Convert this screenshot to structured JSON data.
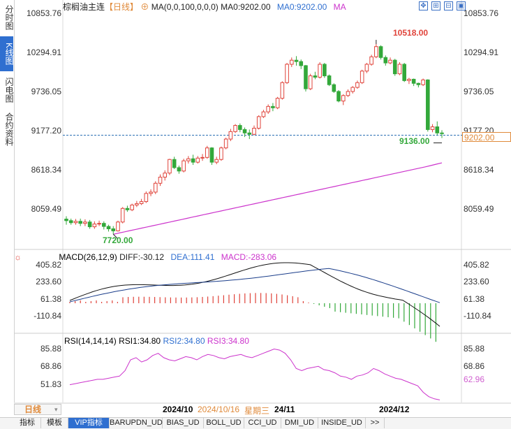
{
  "sidebar": {
    "tabs": [
      {
        "label": "分时图",
        "active": false
      },
      {
        "label": "K线图",
        "active": true
      },
      {
        "label": "闪电图",
        "active": false
      },
      {
        "label": "合约资料",
        "active": false
      }
    ]
  },
  "header": {
    "symbol": "棕榈油主连",
    "period": "【日线】",
    "ma_label": "MA(0,0,100,0,0,0)",
    "ma0_a": "MA0:9202.00",
    "ma0_b": "MA0:9202.00",
    "ma_tail": "MA",
    "toolbar_icons": [
      "crosshair-icon",
      "zoom-in-icon",
      "zoom-out-icon",
      "fullscreen-icon"
    ]
  },
  "main_axis": {
    "left_labels": [
      "10853.76",
      "10294.91",
      "9736.05",
      "9177.20",
      "8618.34",
      "8059.49"
    ],
    "right_labels": [
      "10853.76",
      "10294.91",
      "9736.05",
      "9177.20",
      "8618.34",
      "8059.49"
    ],
    "high_label": "10518.00",
    "low_label": "7720.00",
    "recent_low_label": "9136.00",
    "current_price": "9202.00"
  },
  "macd": {
    "title": "MACD(26,12,9)",
    "diff": "DIFF:-30.12",
    "dea": "DEA:111.41",
    "macd": "MACD:-283.06",
    "labels": [
      "405.82",
      "233.60",
      "61.38",
      "-110.84"
    ]
  },
  "rsi": {
    "title": "RSI(14,14,14)",
    "rsi1": "RSI1:34.80",
    "rsi2": "RSI2:34.80",
    "rsi3": "RSI3:34.80",
    "labels": [
      "85.88",
      "68.86",
      "51.83"
    ],
    "current": "62.96"
  },
  "date_bar": {
    "period_button": "日线",
    "date1": "2024/10",
    "cursor_date": "2024/10/16",
    "weekday": "星期三",
    "date2": "24/11",
    "date3": "2024/12"
  },
  "bottom_tabs": [
    "指标",
    "模板",
    "VIP指标",
    "BARUPDN_UD",
    "BIAS_UD",
    "BOLL_UD",
    "CCI_UD",
    "DMI_UD",
    "INSIDE_UD",
    ">>"
  ],
  "colors": {
    "up": "#e0433a",
    "down": "#33a83a",
    "ma": "#cc33cc",
    "accent": "#2f6fd0",
    "price_line": "#2a6fb3",
    "price_box": "#e08a3a"
  },
  "chart_data": {
    "type": "candlestick",
    "ylim": [
      7620,
      10960
    ],
    "candles": [
      [
        7943,
        7920,
        7985,
        7860
      ],
      [
        7920,
        7890,
        7950,
        7860
      ],
      [
        7890,
        7910,
        7945,
        7860
      ],
      [
        7910,
        7880,
        7950,
        7840
      ],
      [
        7880,
        7900,
        7940,
        7840
      ],
      [
        7900,
        7830,
        7930,
        7800
      ],
      [
        7830,
        7870,
        7910,
        7800
      ],
      [
        7870,
        7880,
        7920,
        7840
      ],
      [
        7880,
        7835,
        7910,
        7790
      ],
      [
        7835,
        7800,
        7860,
        7760
      ],
      [
        7800,
        7770,
        7840,
        7720
      ],
      [
        7770,
        7900,
        7920,
        7760
      ],
      [
        7900,
        8100,
        8120,
        7880
      ],
      [
        8100,
        8080,
        8140,
        8050
      ],
      [
        8080,
        8150,
        8170,
        8060
      ],
      [
        8150,
        8170,
        8210,
        8120
      ],
      [
        8170,
        8200,
        8240,
        8150
      ],
      [
        8200,
        8320,
        8350,
        8180
      ],
      [
        8320,
        8340,
        8380,
        8280
      ],
      [
        8340,
        8470,
        8500,
        8310
      ],
      [
        8470,
        8560,
        8600,
        8430
      ],
      [
        8560,
        8620,
        8660,
        8510
      ],
      [
        8620,
        8820,
        8830,
        8590
      ],
      [
        8820,
        8700,
        8860,
        8680
      ],
      [
        8700,
        8650,
        8730,
        8610
      ],
      [
        8650,
        8800,
        8830,
        8630
      ],
      [
        8800,
        8830,
        8870,
        8760
      ],
      [
        8830,
        8780,
        8890,
        8740
      ],
      [
        8780,
        8840,
        8870,
        8760
      ],
      [
        8840,
        8850,
        8900,
        8800
      ],
      [
        8850,
        8990,
        9020,
        8830
      ],
      [
        8990,
        8780,
        9000,
        8740
      ],
      [
        8780,
        8820,
        8860,
        8750
      ],
      [
        8820,
        8990,
        9010,
        8800
      ],
      [
        8990,
        9120,
        9140,
        8970
      ],
      [
        9120,
        9230,
        9270,
        9090
      ],
      [
        9230,
        9320,
        9340,
        9210
      ],
      [
        9320,
        9260,
        9350,
        9220
      ],
      [
        9260,
        9210,
        9290,
        9150
      ],
      [
        9210,
        9190,
        9260,
        9120
      ],
      [
        9190,
        9280,
        9320,
        9180
      ],
      [
        9280,
        9450,
        9470,
        9260
      ],
      [
        9450,
        9520,
        9550,
        9430
      ],
      [
        9520,
        9600,
        9630,
        9490
      ],
      [
        9600,
        9580,
        9650,
        9530
      ],
      [
        9580,
        9720,
        9740,
        9560
      ],
      [
        9720,
        9950,
        9970,
        9700
      ],
      [
        9950,
        10220,
        10240,
        9930
      ],
      [
        10220,
        10280,
        10320,
        10180
      ],
      [
        10280,
        10260,
        10340,
        10200
      ],
      [
        10260,
        10200,
        10290,
        10150
      ],
      [
        10200,
        9860,
        10210,
        9820
      ],
      [
        9860,
        10050,
        10080,
        9840
      ],
      [
        10050,
        10030,
        10110,
        10000
      ],
      [
        10030,
        10220,
        10250,
        10010
      ],
      [
        10220,
        10050,
        10240,
        10020
      ],
      [
        10050,
        9920,
        10070,
        9900
      ],
      [
        9920,
        9820,
        9940,
        9800
      ],
      [
        9820,
        9680,
        9840,
        9660
      ],
      [
        9680,
        9760,
        9780,
        9620
      ],
      [
        9760,
        9820,
        9850,
        9740
      ],
      [
        9820,
        9880,
        9900,
        9790
      ],
      [
        9880,
        9950,
        9980,
        9860
      ],
      [
        9950,
        10120,
        10140,
        9930
      ],
      [
        10120,
        10220,
        10240,
        10090
      ],
      [
        10220,
        10330,
        10360,
        10200
      ],
      [
        10330,
        10480,
        10518,
        10310
      ],
      [
        10480,
        10320,
        10500,
        10290
      ],
      [
        10320,
        10240,
        10350,
        10200
      ],
      [
        10240,
        10280,
        10320,
        10220
      ],
      [
        10280,
        10080,
        10300,
        10050
      ],
      [
        10080,
        10220,
        10250,
        10060
      ],
      [
        10220,
        9980,
        10240,
        9960
      ],
      [
        9980,
        10000,
        10020,
        9930
      ],
      [
        10000,
        9940,
        10010,
        9900
      ],
      [
        9940,
        9920,
        9950,
        9880
      ],
      [
        9920,
        9990,
        10010,
        9900
      ],
      [
        9990,
        9260,
        10000,
        9230
      ],
      [
        9260,
        9300,
        9340,
        9220
      ],
      [
        9300,
        9210,
        9380,
        9180
      ],
      [
        9210,
        9202,
        9250,
        9136
      ]
    ],
    "ma100": [
      7720,
      7738,
      7756,
      7774,
      7792,
      7810,
      7828,
      7846,
      7864,
      7882,
      7900,
      7918,
      7936,
      7954,
      7972,
      7990,
      8008,
      8026,
      8044,
      8062,
      8080,
      8098,
      8116,
      8134,
      8152,
      8170,
      8188,
      8206,
      8224,
      8242,
      8260,
      8278,
      8296,
      8314,
      8332,
      8350,
      8368,
      8386,
      8404,
      8422,
      8440,
      8458,
      8476,
      8494,
      8512,
      8530,
      8548,
      8566,
      8584,
      8602,
      8620,
      8638,
      8656,
      8674,
      8692,
      8710,
      8730,
      8750,
      8770
    ]
  }
}
